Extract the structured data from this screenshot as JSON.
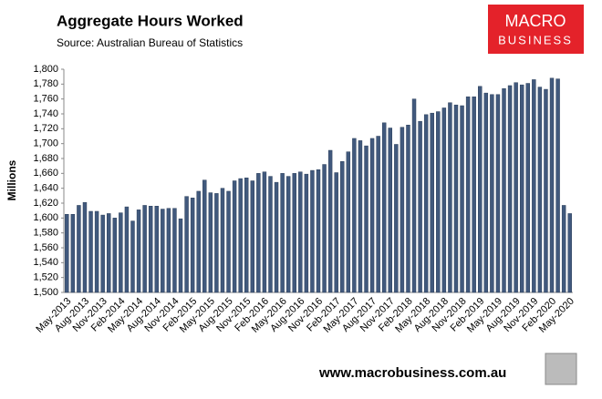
{
  "chart_data": {
    "type": "bar",
    "title": "Aggregate Hours Worked",
    "subtitle": "Source: Australian Bureau of Statistics",
    "y_label": "Millions",
    "logo": [
      "MACRO",
      "BUSINESS"
    ],
    "footer": "www.macrobusiness.com.au",
    "color": "#41597d",
    "grid": false,
    "ylim": [
      1500,
      1800
    ],
    "yticks": [
      {
        "value": 1500,
        "label": "1,500"
      },
      {
        "value": 1520,
        "label": "1,520"
      },
      {
        "value": 1540,
        "label": "1,540"
      },
      {
        "value": 1560,
        "label": "1,560"
      },
      {
        "value": 1580,
        "label": "1,580"
      },
      {
        "value": 1600,
        "label": "1,600"
      },
      {
        "value": 1620,
        "label": "1,620"
      },
      {
        "value": 1640,
        "label": "1,640"
      },
      {
        "value": 1660,
        "label": "1,660"
      },
      {
        "value": 1680,
        "label": "1,680"
      },
      {
        "value": 1700,
        "label": "1,700"
      },
      {
        "value": 1720,
        "label": "1,720"
      },
      {
        "value": 1740,
        "label": "1,740"
      },
      {
        "value": 1760,
        "label": "1,760"
      },
      {
        "value": 1780,
        "label": "1,780"
      },
      {
        "value": 1800,
        "label": "1,800"
      }
    ],
    "categories": [
      "May-2013",
      null,
      null,
      "Aug-2013",
      null,
      null,
      "Nov-2013",
      null,
      null,
      "Feb-2014",
      null,
      null,
      "May-2014",
      null,
      null,
      "Aug-2014",
      null,
      null,
      "Nov-2014",
      null,
      null,
      "Feb-2015",
      null,
      null,
      "May-2015",
      null,
      null,
      "Aug-2015",
      null,
      null,
      "Nov-2015",
      null,
      null,
      "Feb-2016",
      null,
      null,
      "May-2016",
      null,
      null,
      "Aug-2016",
      null,
      null,
      "Nov-2016",
      null,
      null,
      "Feb-2017",
      null,
      null,
      "May-2017",
      null,
      null,
      "Aug-2017",
      null,
      null,
      "Nov-2017",
      null,
      null,
      "Feb-2018",
      null,
      null,
      "May-2018",
      null,
      null,
      "Aug-2018",
      null,
      null,
      "Nov-2018",
      null,
      null,
      "Feb-2019",
      null,
      null,
      "May-2019",
      null,
      null,
      "Aug-2019",
      null,
      null,
      "Nov-2019",
      null,
      null,
      "Feb-2020",
      null,
      null,
      "May-2020"
    ],
    "values": [
      1605,
      1605,
      1617,
      1621,
      1609,
      1609,
      1604,
      1606,
      1600,
      1607,
      1615,
      1596,
      1611,
      1617,
      1616,
      1616,
      1612,
      1613,
      1613,
      1599,
      1629,
      1627,
      1636,
      1651,
      1634,
      1633,
      1640,
      1636,
      1650,
      1653,
      1654,
      1650,
      1660,
      1662,
      1656,
      1648,
      1660,
      1656,
      1660,
      1662,
      1659,
      1664,
      1665,
      1672,
      1691,
      1661,
      1676,
      1689,
      1707,
      1704,
      1697,
      1707,
      1710,
      1728,
      1721,
      1699,
      1722,
      1725,
      1760,
      1730,
      1739,
      1741,
      1743,
      1748,
      1755,
      1752,
      1751,
      1763,
      1763,
      1777,
      1768,
      1766,
      1766,
      1774,
      1778,
      1782,
      1779,
      1781,
      1786,
      1776,
      1773,
      1788,
      1787,
      1617,
      1606
    ]
  }
}
